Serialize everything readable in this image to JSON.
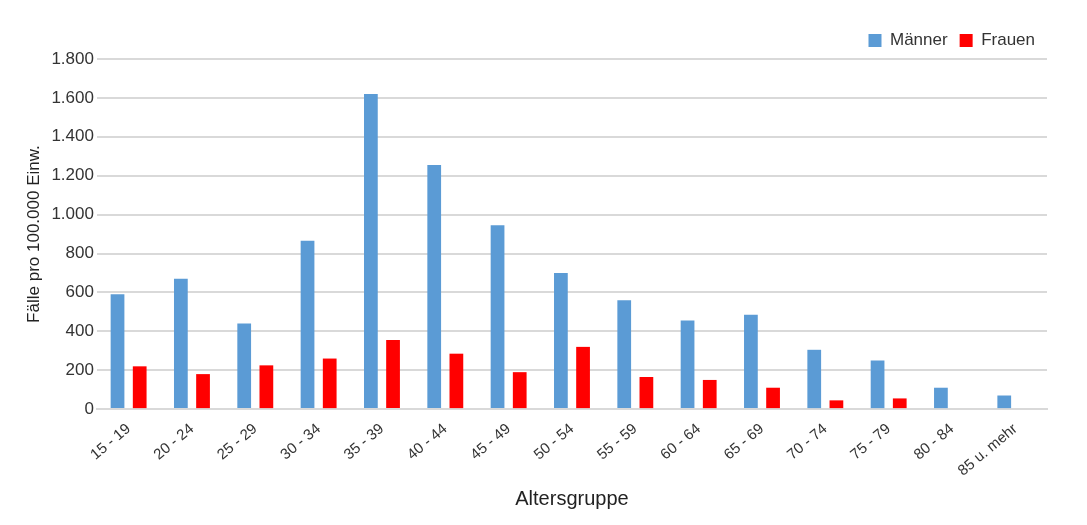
{
  "chart_data": {
    "type": "bar",
    "xlabel": "Altersgruppe",
    "ylabel": "Fälle pro 100.000 Einw.",
    "categories": [
      "15 - 19",
      "20 - 24",
      "25 - 29",
      "30 - 34",
      "35 - 39",
      "40 - 44",
      "45 - 49",
      "50 - 54",
      "55 - 59",
      "60 - 64",
      "65 - 69",
      "70 - 74",
      "75 - 79",
      "80 - 84",
      "85 u. mehr"
    ],
    "series": [
      {
        "name": "Männer",
        "color": "#5b9bd5",
        "values": [
          590,
          670,
          440,
          865,
          1620,
          1255,
          945,
          700,
          560,
          455,
          485,
          305,
          250,
          110,
          70
        ]
      },
      {
        "name": "Frauen",
        "color": "#ff0000",
        "values": [
          220,
          180,
          225,
          260,
          355,
          285,
          190,
          320,
          165,
          150,
          110,
          45,
          55,
          null,
          null
        ]
      }
    ],
    "ylim": [
      0,
      1800
    ],
    "yticks": [
      {
        "value": 0,
        "label": "0"
      },
      {
        "value": 200,
        "label": "200"
      },
      {
        "value": 400,
        "label": "400"
      },
      {
        "value": 600,
        "label": "600"
      },
      {
        "value": 800,
        "label": "800"
      },
      {
        "value": 1000,
        "label": "1.000"
      },
      {
        "value": 1200,
        "label": "1.200"
      },
      {
        "value": 1400,
        "label": "1.400"
      },
      {
        "value": 1600,
        "label": "1.600"
      },
      {
        "value": 1800,
        "label": "1.800"
      }
    ],
    "grid": "y",
    "legend": "top right"
  }
}
